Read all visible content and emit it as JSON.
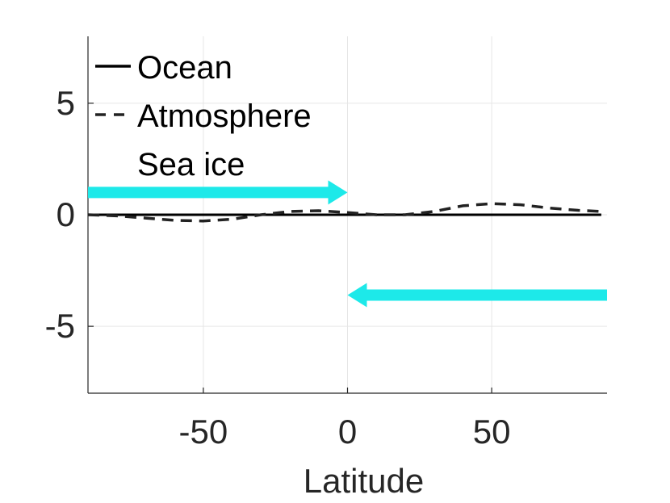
{
  "chart_data": {
    "type": "line",
    "xlabel": "Latitude",
    "ylabel": "",
    "xlim": [
      -90,
      90
    ],
    "ylim": [
      -8,
      8
    ],
    "xticks": [
      -50,
      0,
      50
    ],
    "xtick_labels": [
      "-50",
      "0",
      "50"
    ],
    "yticks": [
      -5,
      0,
      5
    ],
    "ytick_labels": [
      "-5",
      "0",
      "5"
    ],
    "grid": true,
    "legend_position": "top-left",
    "series": [
      {
        "name": "Ocean",
        "style": "solid",
        "color": "#000000",
        "x": [
          -90,
          -60,
          -30,
          0,
          30,
          60,
          88
        ],
        "y": [
          0,
          0,
          0,
          0,
          0,
          0,
          0
        ]
      },
      {
        "name": "Atmosphere",
        "style": "dashed",
        "color": "#222222",
        "x": [
          -90,
          -80,
          -70,
          -60,
          -50,
          -40,
          -30,
          -20,
          -10,
          0,
          10,
          20,
          30,
          40,
          50,
          60,
          70,
          80,
          88
        ],
        "y": [
          0,
          -0.05,
          -0.15,
          -0.25,
          -0.28,
          -0.2,
          0.0,
          0.15,
          0.18,
          0.1,
          0.0,
          0.0,
          0.15,
          0.4,
          0.5,
          0.45,
          0.3,
          0.2,
          0.15
        ]
      },
      {
        "name": "Sea ice",
        "style": "solid",
        "color": "#00e5e5",
        "x": [],
        "y": []
      }
    ],
    "annotations": [
      {
        "type": "arrow",
        "color": "#1de9e9",
        "direction": "right",
        "x_from": -90,
        "x_to": 0,
        "y": 1
      },
      {
        "type": "arrow",
        "color": "#1de9e9",
        "direction": "left",
        "x_from": 90,
        "x_to": 0,
        "y": -3.6
      }
    ]
  }
}
